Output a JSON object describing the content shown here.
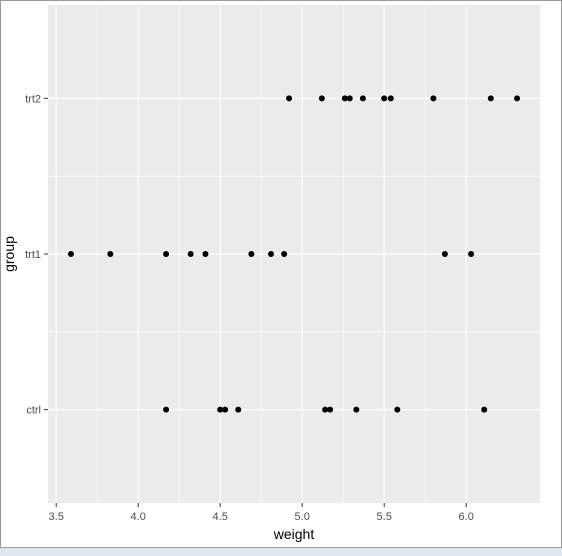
{
  "chart_data": {
    "type": "scatter",
    "title": "",
    "xlabel": "weight",
    "ylabel": "group",
    "xlim": [
      3.45,
      6.45
    ],
    "x_ticks": [
      "3.5",
      "4.0",
      "4.5",
      "5.0",
      "5.5",
      "6.0"
    ],
    "x_tick_values": [
      3.5,
      4.0,
      4.5,
      5.0,
      5.5,
      6.0
    ],
    "categories": [
      "ctrl",
      "trt1",
      "trt2"
    ],
    "grid": true,
    "panel_background": "#ebebeb",
    "point_color": "#000000",
    "points": [
      {
        "group": "trt2",
        "x": 4.92
      },
      {
        "group": "trt2",
        "x": 5.12
      },
      {
        "group": "trt2",
        "x": 5.26
      },
      {
        "group": "trt2",
        "x": 5.29
      },
      {
        "group": "trt2",
        "x": 5.37
      },
      {
        "group": "trt2",
        "x": 5.5
      },
      {
        "group": "trt2",
        "x": 5.54
      },
      {
        "group": "trt2",
        "x": 5.8
      },
      {
        "group": "trt2",
        "x": 6.15
      },
      {
        "group": "trt2",
        "x": 6.31
      },
      {
        "group": "trt1",
        "x": 3.59
      },
      {
        "group": "trt1",
        "x": 3.83
      },
      {
        "group": "trt1",
        "x": 4.17
      },
      {
        "group": "trt1",
        "x": 4.32
      },
      {
        "group": "trt1",
        "x": 4.41
      },
      {
        "group": "trt1",
        "x": 4.69
      },
      {
        "group": "trt1",
        "x": 4.81
      },
      {
        "group": "trt1",
        "x": 4.89
      },
      {
        "group": "trt1",
        "x": 5.87
      },
      {
        "group": "trt1",
        "x": 6.03
      },
      {
        "group": "ctrl",
        "x": 4.17
      },
      {
        "group": "ctrl",
        "x": 4.5
      },
      {
        "group": "ctrl",
        "x": 4.53
      },
      {
        "group": "ctrl",
        "x": 4.61
      },
      {
        "group": "ctrl",
        "x": 5.14
      },
      {
        "group": "ctrl",
        "x": 5.17
      },
      {
        "group": "ctrl",
        "x": 5.33
      },
      {
        "group": "ctrl",
        "x": 5.58
      },
      {
        "group": "ctrl",
        "x": 6.11
      }
    ]
  }
}
